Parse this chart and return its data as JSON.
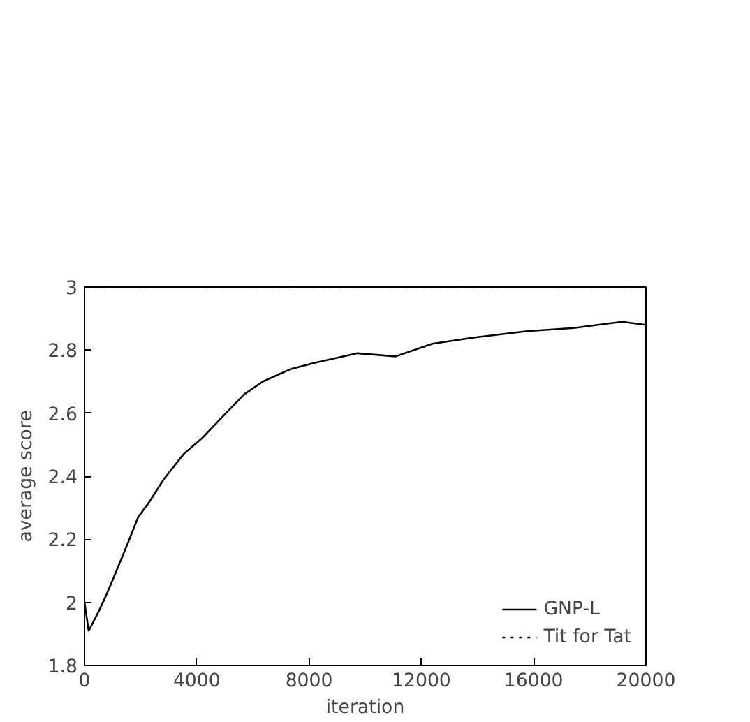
{
  "chart_data": {
    "type": "line",
    "xlabel": "iteration",
    "ylabel": "average score",
    "xlim": [
      0,
      20000
    ],
    "ylim": [
      1.8,
      3
    ],
    "xticks": [
      0,
      4000,
      8000,
      12000,
      16000,
      20000
    ],
    "yticks": [
      1.8,
      2,
      2.2,
      2.4,
      2.6,
      2.8,
      3
    ],
    "grid": false,
    "legend": "bottom right",
    "marker": "none",
    "series": [
      {
        "name": "GNP-L",
        "color": "#000000",
        "line_style": "solid",
        "x": [
          0,
          150,
          500,
          760,
          1000,
          1510,
          1910,
          2320,
          2820,
          3530,
          4180,
          5040,
          5690,
          6350,
          7350,
          8210,
          9720,
          11080,
          12390,
          13900,
          15770,
          17430,
          19140,
          20000
        ],
        "values": [
          2.0,
          1.91,
          1.97,
          2.02,
          2.07,
          2.18,
          2.27,
          2.32,
          2.39,
          2.47,
          2.52,
          2.6,
          2.66,
          2.7,
          2.74,
          2.76,
          2.79,
          2.78,
          2.82,
          2.84,
          2.86,
          2.87,
          2.89,
          2.88
        ]
      },
      {
        "name": "Tit for Tat",
        "color": "#000000",
        "line_style": "dotted",
        "x": [
          0,
          20000
        ],
        "values": [
          3,
          3
        ]
      }
    ]
  }
}
